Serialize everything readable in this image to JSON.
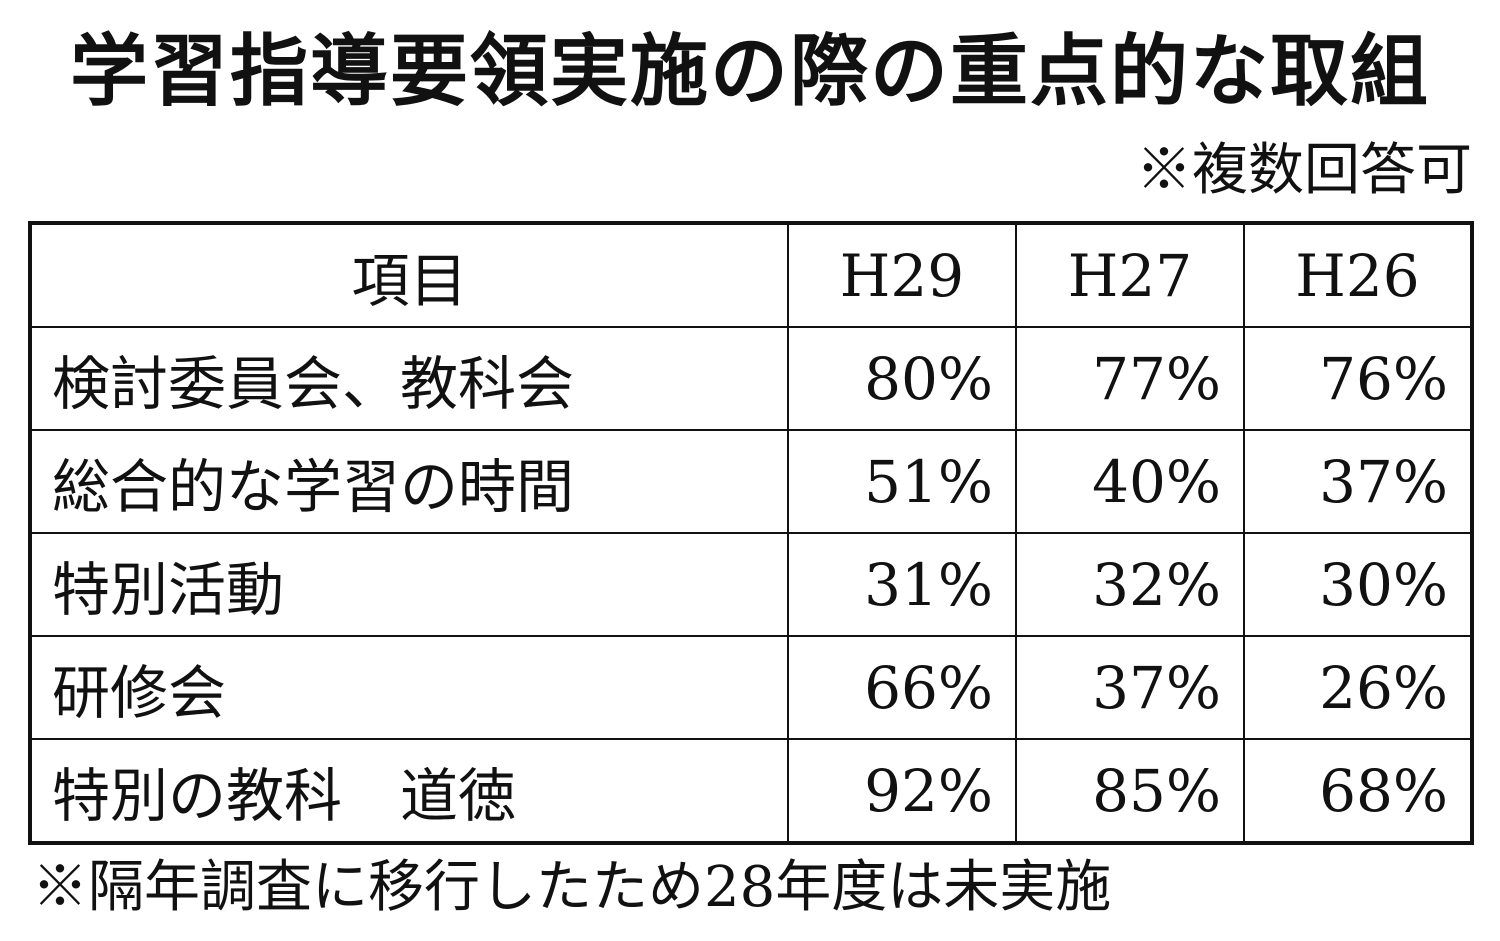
{
  "title": "学習指導要領実施の際の重点的な取組",
  "note_top": "※複数回答可",
  "table": {
    "headers": [
      "項目",
      "H29",
      "H27",
      "H26"
    ],
    "rows": [
      {
        "item": "検討委員会、教科会",
        "values": [
          "80%",
          "77%",
          "76%"
        ]
      },
      {
        "item": "総合的な学習の時間",
        "values": [
          "51%",
          "40%",
          "37%"
        ]
      },
      {
        "item": "特別活動",
        "values": [
          "31%",
          "32%",
          "30%"
        ]
      },
      {
        "item": "研修会",
        "values": [
          "66%",
          "37%",
          "26%"
        ]
      },
      {
        "item": "特別の教科　道徳",
        "values": [
          "92%",
          "85%",
          "68%"
        ]
      }
    ]
  },
  "note_bottom": "※隔年調査に移行したため28年度は未実施"
}
